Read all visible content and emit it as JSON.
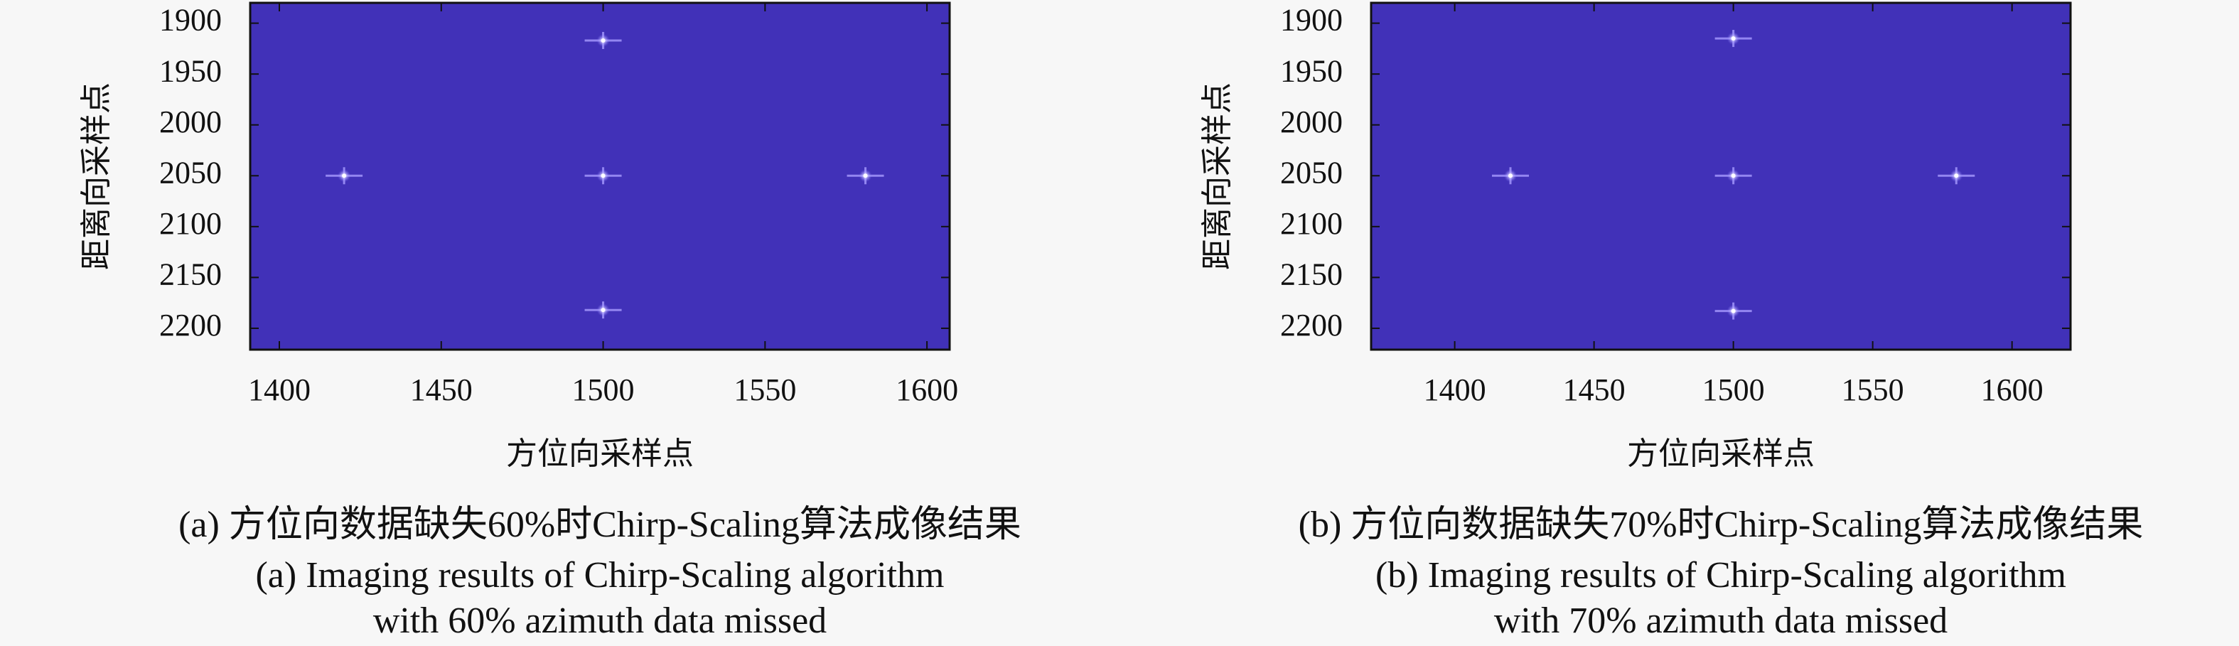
{
  "chart_data": [
    {
      "type": "scatter",
      "xlabel": "方位向采样点",
      "ylabel": "距离向采样点",
      "x": [
        1500,
        1420,
        1500,
        1581,
        1500
      ],
      "values": [
        1917,
        2050,
        2050,
        2050,
        2182
      ],
      "xlim": [
        1391,
        1607
      ],
      "ylim": [
        1880,
        2221
      ],
      "y_reversed": true,
      "xticks": [
        1400,
        1450,
        1500,
        1550,
        1600
      ],
      "yticks": [
        1900,
        1950,
        2000,
        2050,
        2100,
        2150,
        2200
      ],
      "plot_color": "#4131b8",
      "color": "#ffffff",
      "caption": [
        "(a) 方位向数据缺失60%时Chirp-Scaling算法成像结果",
        "(a) Imaging results of Chirp-Scaling algorithm",
        "with 60% azimuth data missed"
      ]
    },
    {
      "type": "scatter",
      "xlabel": "方位向采样点",
      "ylabel": "距离向采样点",
      "x": [
        1500,
        1420,
        1500,
        1580,
        1500
      ],
      "values": [
        1915,
        2050,
        2050,
        2050,
        2183
      ],
      "xlim": [
        1370,
        1621
      ],
      "ylim": [
        1880,
        2221
      ],
      "y_reversed": true,
      "xticks": [
        1400,
        1450,
        1500,
        1550,
        1600
      ],
      "yticks": [
        1900,
        1950,
        2000,
        2050,
        2100,
        2150,
        2200
      ],
      "plot_color": "#4131b8",
      "color": "#ffffff",
      "caption": [
        "(b) 方位向数据缺失70%时Chirp-Scaling算法成像结果",
        "(b) Imaging results of Chirp-Scaling algorithm",
        "with 70% azimuth data missed"
      ]
    }
  ]
}
